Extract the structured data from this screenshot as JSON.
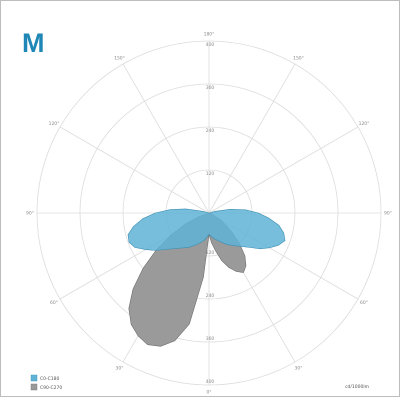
{
  "corner_label": "M",
  "colors": {
    "c0_c180": "#5eb3d6",
    "c90_c270": "#9a9a9a",
    "grid": "#dcdcdc",
    "accent": "#1e87b6"
  },
  "chart_data": {
    "type": "polar",
    "title": "",
    "radial_max": 400,
    "radial_ticks": [
      120,
      240,
      360,
      400
    ],
    "angle_tick_labels": [
      "180°",
      "150°",
      "120°",
      "90°",
      "60°",
      "30°",
      "0°",
      "30°",
      "60°",
      "90°",
      "120°",
      "150°"
    ],
    "radial_tick_labels": [
      "120",
      "240",
      "360",
      "400",
      "120",
      "240",
      "360",
      "400"
    ],
    "unit": "cd/1000lm",
    "legend": [
      "C0-C180",
      "C90-C270"
    ],
    "grid": true,
    "series": [
      {
        "name": "C0-C180",
        "color": "#5eb3d6",
        "angles": [
          0,
          10,
          20,
          30,
          40,
          50,
          55,
          60,
          65,
          70,
          75,
          80,
          85,
          90,
          95,
          100,
          105
        ],
        "left": [
          50,
          65,
          77,
          92,
          107,
          132,
          152,
          170,
          190,
          198,
          195,
          178,
          155,
          125,
          90,
          55,
          15
        ],
        "right": [
          50,
          60,
          70,
          85,
          100,
          125,
          145,
          162,
          178,
          188,
          180,
          165,
          140,
          115,
          85,
          50,
          15
        ]
      },
      {
        "name": "C90-C270",
        "color": "#9a9a9a",
        "angles": [
          0,
          5,
          10,
          15,
          20,
          25,
          30,
          35,
          40,
          45,
          50,
          55,
          60,
          65,
          70
        ],
        "left": [
          50,
          150,
          262,
          308,
          330,
          338,
          330,
          316,
          290,
          250,
          200,
          150,
          100,
          60,
          25
        ],
        "right": [
          50,
          70,
          90,
          115,
          135,
          150,
          160,
          150,
          130,
          100,
          70,
          45,
          25,
          10,
          5
        ]
      }
    ]
  }
}
